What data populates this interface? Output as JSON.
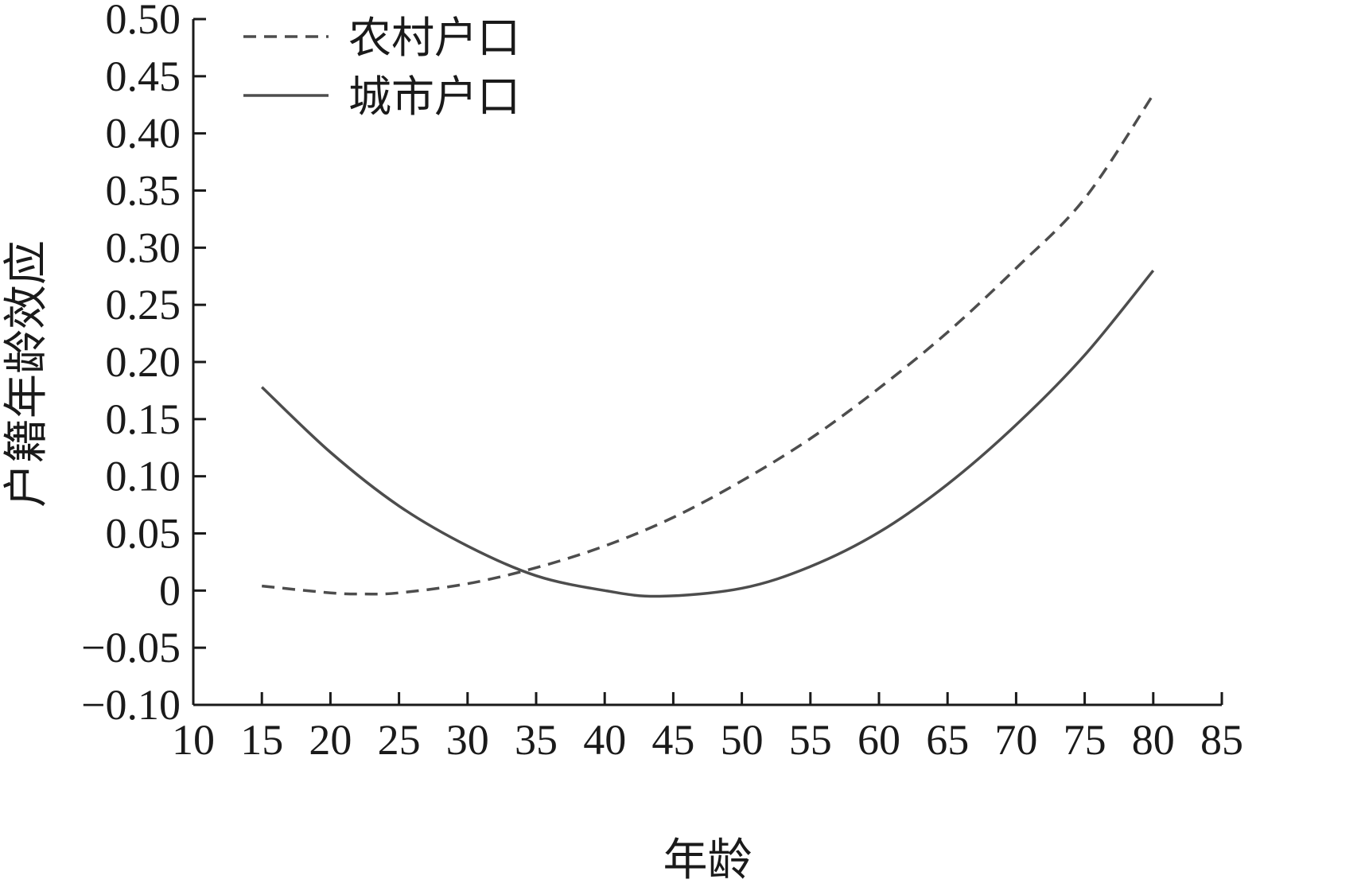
{
  "chart_data": {
    "type": "line",
    "title": "",
    "xlabel": "年龄",
    "ylabel": "户籍年龄效应",
    "xlim": [
      10,
      85
    ],
    "ylim": [
      -0.1,
      0.5
    ],
    "x_ticks": [
      10,
      15,
      20,
      25,
      30,
      35,
      40,
      45,
      50,
      55,
      60,
      65,
      70,
      75,
      80,
      85
    ],
    "x_tick_labels": [
      "10",
      "15",
      "20",
      "25",
      "30",
      "35",
      "40",
      "45",
      "50",
      "55",
      "60",
      "65",
      "70",
      "75",
      "80",
      "85"
    ],
    "y_ticks": [
      -0.1,
      -0.05,
      0,
      0.05,
      0.1,
      0.15,
      0.2,
      0.25,
      0.3,
      0.35,
      0.4,
      0.45,
      0.5
    ],
    "y_tick_labels": [
      "−0.10",
      "−0.05",
      "0",
      "0.05",
      "0.10",
      "0.15",
      "0.20",
      "0.25",
      "0.30",
      "0.35",
      "0.40",
      "0.45",
      "0.50"
    ],
    "grid": false,
    "legend_position": "top-left",
    "series": [
      {
        "name": "农村户口",
        "style": "dashed",
        "color": "#4d4d4d",
        "x": [
          15,
          20,
          22.5,
          25,
          30,
          35,
          40,
          45,
          50,
          55,
          60,
          65,
          70,
          75,
          80
        ],
        "y": [
          0.004,
          -0.002,
          -0.003,
          -0.002,
          0.006,
          0.02,
          0.039,
          0.064,
          0.096,
          0.133,
          0.177,
          0.226,
          0.282,
          0.343,
          0.434
        ]
      },
      {
        "name": "城市户口",
        "style": "solid",
        "color": "#4d4d4d",
        "x": [
          15,
          20,
          25,
          30,
          35,
          40,
          44,
          50,
          55,
          60,
          65,
          70,
          75,
          80
        ],
        "y": [
          0.178,
          0.121,
          0.074,
          0.039,
          0.013,
          0.0,
          -0.005,
          0.002,
          0.021,
          0.051,
          0.093,
          0.145,
          0.206,
          0.28
        ]
      }
    ]
  }
}
